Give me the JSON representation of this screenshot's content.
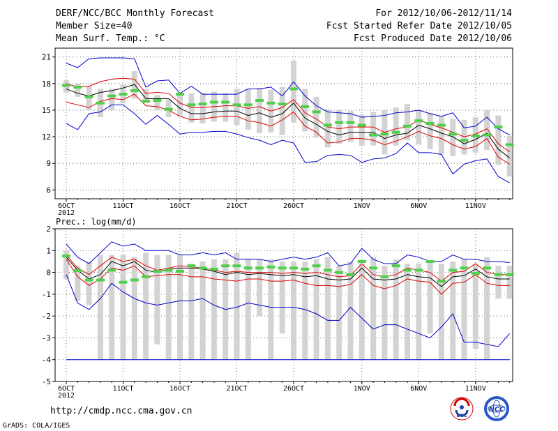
{
  "header": {
    "title": "DERF/NCC/BCC Monthly Forecast",
    "member_size": "Member Size=40",
    "variable": "Mean Surf. Temp.: °C",
    "period": "For 2012/10/06-2012/11/14",
    "started": "Fcst Started Refer Date 2012/10/05",
    "produced": "Fcst Produced Date 2012/10/06"
  },
  "footer": {
    "url": "http://cmdp.ncc.cma.gov.cn",
    "grads": "GrADS: COLA/IGES",
    "logo_bcc": "BCC",
    "logo_ncc": "NCC"
  },
  "colors": {
    "box": "#d3d3d3",
    "mean": "#4ed04a",
    "median": "#000000",
    "quartile": "#dd0000",
    "extreme": "#0000cc",
    "grid": "#555555"
  },
  "chart_data": [
    {
      "type": "box-ensemble",
      "title": "Mean Surf. Temp.: °C",
      "ylim": [
        5,
        22
      ],
      "yticks": [
        6,
        9,
        12,
        15,
        18,
        21
      ],
      "x_tick_labels": [
        "6OCT",
        "11OCT",
        "16OCT",
        "21OCT",
        "26OCT",
        "1NOV",
        "6NOV",
        "11NOV"
      ],
      "x_tick_days": [
        1,
        6,
        11,
        16,
        21,
        27,
        32,
        37
      ],
      "year_label": "2012",
      "days": 40,
      "series": {
        "box_low": [
          17.0,
          16.5,
          15.0,
          14.2,
          15.0,
          15.8,
          16.3,
          15.8,
          15.0,
          14.2,
          14.3,
          13.6,
          13.5,
          13.7,
          13.7,
          13.3,
          12.8,
          12.4,
          12.5,
          12.2,
          13.6,
          12.6,
          11.9,
          10.8,
          11.2,
          11.4,
          11.0,
          11.0,
          10.0,
          11.0,
          11.6,
          11.1,
          10.6,
          10.0,
          9.8,
          10.0,
          10.2,
          10.5,
          8.8,
          7.5
        ],
        "box_high": [
          18.4,
          18.0,
          17.7,
          17.4,
          17.4,
          17.9,
          19.4,
          17.4,
          16.7,
          16.2,
          16.8,
          16.9,
          16.9,
          17.1,
          16.9,
          17.4,
          17.4,
          17.5,
          17.3,
          17.6,
          20.6,
          17.4,
          16.5,
          15.1,
          15.0,
          14.9,
          14.5,
          14.8,
          15.0,
          15.3,
          15.7,
          15.0,
          14.7,
          14.3,
          14.0,
          13.9,
          14.2,
          15.0,
          14.4,
          12.1
        ],
        "mean": [
          17.8,
          17.6,
          16.5,
          15.8,
          16.6,
          16.8,
          17.2,
          16.0,
          16.1,
          15.1,
          16.8,
          15.6,
          15.7,
          15.9,
          15.9,
          15.6,
          15.6,
          16.1,
          15.8,
          15.7,
          17.4,
          15.4,
          14.8,
          13.3,
          13.6,
          13.6,
          13.3,
          12.2,
          12.3,
          12.5,
          13.2,
          13.8,
          13.5,
          13.3,
          12.3,
          11.6,
          12.1,
          12.2,
          13.1,
          11.1
        ],
        "median": [
          17.4,
          16.9,
          16.6,
          17.0,
          17.2,
          17.5,
          17.9,
          16.3,
          16.3,
          16.3,
          15.2,
          14.6,
          14.6,
          14.8,
          14.9,
          14.9,
          14.4,
          14.7,
          14.2,
          14.6,
          15.8,
          14.1,
          13.4,
          12.6,
          12.2,
          12.5,
          12.5,
          12.5,
          11.8,
          12.2,
          12.4,
          13.3,
          12.9,
          12.4,
          12.0,
          11.2,
          11.7,
          12.4,
          10.6,
          9.6
        ],
        "upper_q": [
          18.0,
          17.6,
          17.7,
          18.2,
          18.5,
          18.6,
          18.5,
          16.9,
          17.0,
          16.9,
          15.8,
          15.3,
          15.3,
          15.4,
          15.5,
          15.5,
          15.2,
          15.4,
          14.9,
          15.3,
          16.2,
          14.7,
          14.0,
          13.1,
          12.9,
          13.1,
          13.1,
          13.1,
          12.5,
          12.9,
          13.1,
          13.9,
          13.4,
          13.0,
          12.5,
          12.0,
          12.3,
          12.9,
          11.2,
          10.3
        ],
        "lower_q": [
          15.9,
          15.6,
          15.3,
          16.0,
          16.3,
          16.2,
          16.8,
          15.5,
          15.4,
          15.0,
          14.3,
          13.9,
          14.0,
          14.2,
          14.3,
          14.3,
          13.8,
          13.6,
          13.2,
          13.9,
          14.8,
          13.2,
          12.5,
          11.3,
          11.4,
          11.8,
          11.8,
          11.6,
          11.1,
          11.5,
          12.0,
          12.6,
          12.1,
          11.8,
          11.1,
          10.6,
          10.9,
          11.8,
          9.7,
          8.9
        ],
        "max": [
          20.3,
          19.8,
          20.8,
          20.9,
          20.9,
          20.9,
          20.8,
          17.6,
          18.3,
          18.4,
          16.9,
          17.7,
          16.8,
          16.8,
          16.8,
          16.8,
          17.4,
          17.4,
          17.6,
          16.6,
          18.2,
          16.6,
          15.5,
          14.8,
          14.7,
          14.6,
          14.2,
          14.3,
          14.4,
          14.7,
          14.8,
          15.0,
          14.6,
          14.3,
          14.7,
          13.0,
          13.2,
          14.2,
          12.9,
          12.2
        ],
        "min": [
          13.5,
          12.8,
          14.6,
          14.8,
          15.6,
          15.6,
          14.6,
          13.4,
          14.4,
          13.4,
          12.3,
          12.5,
          12.5,
          12.6,
          12.6,
          12.3,
          11.9,
          11.6,
          11.1,
          11.6,
          11.3,
          9.1,
          9.2,
          9.9,
          10.0,
          9.9,
          9.1,
          9.5,
          9.6,
          10.1,
          11.3,
          10.2,
          10.2,
          10.0,
          7.8,
          8.9,
          9.3,
          9.5,
          7.5,
          6.8
        ]
      }
    },
    {
      "type": "box-ensemble",
      "title": "Prec.: log(mm/d)",
      "ylim": [
        -5,
        2
      ],
      "yticks": [
        -5,
        -4,
        -3,
        -2,
        -1,
        0,
        1,
        2
      ],
      "x_tick_labels": [
        "6OCT",
        "11OCT",
        "16OCT",
        "21OCT",
        "26OCT",
        "1NOV",
        "6NOV",
        "11NOV"
      ],
      "x_tick_days": [
        1,
        6,
        11,
        16,
        21,
        27,
        32,
        37
      ],
      "year_label": "2012",
      "days": 40,
      "series": {
        "box_low": [
          -0.3,
          -1.3,
          -1.5,
          -4.0,
          -4.0,
          -4.0,
          -4.0,
          -4.0,
          -3.3,
          -4.0,
          -4.0,
          -4.0,
          -4.0,
          -4.0,
          -4.0,
          -4.0,
          -4.0,
          -2.0,
          -4.0,
          -2.8,
          -4.0,
          -4.0,
          -4.0,
          -4.0,
          -4.0,
          -4.0,
          -4.0,
          -4.0,
          -4.0,
          -4.0,
          -4.0,
          -4.0,
          -2.8,
          -4.0,
          -4.0,
          -4.0,
          -3.5,
          -4.0,
          -1.2,
          -1.2
        ],
        "box_high": [
          1.0,
          0.3,
          0.5,
          0.8,
          0.8,
          0.8,
          0.7,
          0.9,
          0.8,
          0.8,
          0.8,
          0.4,
          0.5,
          0.6,
          0.6,
          0.9,
          0.6,
          0.6,
          0.6,
          0.5,
          0.5,
          0.5,
          0.6,
          0.7,
          0.3,
          0.5,
          0.4,
          0.7,
          0.3,
          0.6,
          0.4,
          0.4,
          0.5,
          0.4,
          0.5,
          0.6,
          0.4,
          0.7,
          0.3,
          0.3
        ],
        "mean": [
          0.75,
          0.08,
          -0.35,
          -0.35,
          0.1,
          -0.45,
          -0.35,
          -0.2,
          0.05,
          0.1,
          0.05,
          0.3,
          0.2,
          0.15,
          0.3,
          0.3,
          0.2,
          0.2,
          0.25,
          0.2,
          0.2,
          0.15,
          0.3,
          0.1,
          0.0,
          -0.1,
          0.5,
          0.2,
          -0.2,
          0.3,
          0.1,
          0.1,
          0.5,
          -0.4,
          0.1,
          0.2,
          -0.05,
          0.2,
          -0.1,
          -0.1
        ],
        "median": [
          0.7,
          0.1,
          -0.3,
          -0.1,
          0.5,
          0.3,
          0.5,
          0.1,
          0.0,
          0.15,
          0.2,
          0.2,
          0.15,
          0.05,
          -0.1,
          0.0,
          -0.1,
          -0.05,
          -0.1,
          -0.15,
          -0.1,
          -0.2,
          -0.15,
          -0.3,
          -0.35,
          -0.3,
          0.2,
          -0.3,
          -0.35,
          -0.3,
          -0.1,
          -0.2,
          -0.25,
          -0.65,
          -0.2,
          -0.15,
          0.15,
          -0.2,
          -0.3,
          -0.3
        ],
        "upper_q": [
          0.8,
          0.2,
          -0.1,
          0.3,
          0.7,
          0.5,
          0.6,
          0.3,
          0.1,
          0.2,
          0.3,
          0.25,
          0.2,
          0.1,
          0.0,
          0.05,
          0.0,
          0.0,
          0.0,
          -0.05,
          0.0,
          -0.05,
          0.0,
          -0.1,
          -0.2,
          -0.15,
          0.4,
          -0.1,
          -0.2,
          -0.1,
          0.2,
          0.1,
          0.0,
          -0.4,
          0.0,
          0.05,
          0.4,
          0.0,
          -0.1,
          -0.1
        ],
        "lower_q": [
          0.6,
          -0.2,
          -0.6,
          -0.3,
          0.2,
          0.1,
          0.3,
          -0.2,
          -0.15,
          -0.1,
          -0.1,
          -0.2,
          -0.2,
          -0.3,
          -0.35,
          -0.4,
          -0.3,
          -0.3,
          -0.4,
          -0.4,
          -0.35,
          -0.5,
          -0.6,
          -0.6,
          -0.65,
          -0.55,
          -0.1,
          -0.6,
          -0.75,
          -0.6,
          -0.3,
          -0.4,
          -0.45,
          -1.0,
          -0.5,
          -0.45,
          -0.1,
          -0.5,
          -0.6,
          -0.6
        ],
        "max": [
          1.3,
          0.7,
          0.4,
          0.9,
          1.4,
          1.2,
          1.3,
          1.0,
          1.0,
          1.0,
          0.8,
          0.8,
          0.9,
          0.8,
          0.9,
          0.6,
          0.6,
          0.6,
          0.5,
          0.6,
          0.7,
          0.6,
          0.7,
          0.9,
          0.3,
          0.4,
          1.1,
          0.6,
          0.4,
          0.4,
          0.8,
          0.7,
          0.5,
          0.5,
          0.8,
          0.6,
          0.6,
          0.5,
          0.5,
          0.45
        ],
        "min": [
          -0.1,
          -1.4,
          -1.7,
          -1.2,
          -0.5,
          -0.9,
          -1.2,
          -1.4,
          -1.5,
          -1.4,
          -1.3,
          -1.3,
          -1.2,
          -1.5,
          -1.7,
          -1.6,
          -1.4,
          -1.5,
          -1.6,
          -1.6,
          -1.6,
          -1.7,
          -1.9,
          -2.2,
          -2.2,
          -1.6,
          -2.1,
          -2.6,
          -2.4,
          -2.4,
          -2.6,
          -2.8,
          -3.0,
          -2.5,
          -1.9,
          -3.2,
          -3.2,
          -3.3,
          -3.4,
          -2.8
        ],
        "floor": -4
      }
    }
  ]
}
